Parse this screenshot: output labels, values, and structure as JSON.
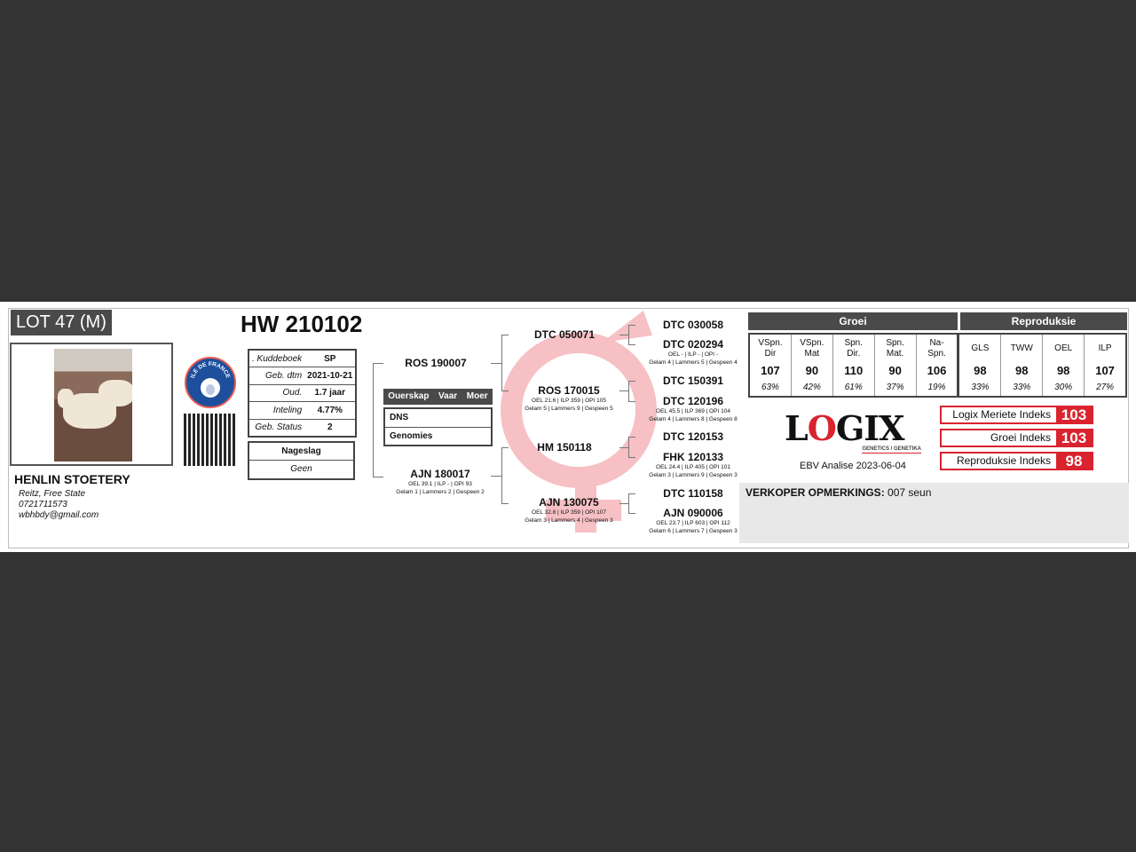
{
  "lot": "LOT 47 (M)",
  "animal_id": "HW 210102",
  "breed_logo_text": "ILE DE FRANCE",
  "breeder": {
    "name": "HENLIN STOETERY",
    "location": "Reitz, Free State",
    "phone": "0721711573",
    "email": "wbhbdy@gmail.com"
  },
  "info": [
    {
      "label": ". Kuddeboek",
      "value": "SP"
    },
    {
      "label": "Geb. dtm",
      "value": "2021-10-21"
    },
    {
      "label": "Oud.",
      "value": "1.7 jaar"
    },
    {
      "label": "Inteling",
      "value": "4.77%"
    },
    {
      "label": "Geb. Status",
      "value": "2"
    }
  ],
  "nageslag": {
    "label": "Nageslag",
    "value": "Geen"
  },
  "ouerskap": {
    "headers": [
      "Ouerskap",
      "Vaar",
      "Moer"
    ],
    "rows": [
      "DNS",
      "Genomies"
    ]
  },
  "pedigree": {
    "sire": {
      "name": "ROS 190007"
    },
    "dam": {
      "name": "AJN 180017",
      "d1": "OEL 39.1 | ILP - | OPI 93",
      "d2": "Gelam 1 | Lammers 2 | Gespeen 2"
    },
    "ss": {
      "name": "DTC 050071"
    },
    "sd": {
      "name": "ROS 170015",
      "d1": "OEL 21.6 | ILP 359 | OPI 105",
      "d2": "Gelam 5 | Lammers 9 | Gespeen 5"
    },
    "ds": {
      "name": "HM 150118"
    },
    "dd": {
      "name": "AJN 130075",
      "d1": "OEL 32.8 | ILP 359 | OPI 107",
      "d2": "Gelam 3 | Lammers 4 | Gespeen 3"
    },
    "sss": {
      "name": "DTC 030058"
    },
    "ssd": {
      "name": "DTC 020294",
      "d1": "OEL - | ILP - | OPI -",
      "d2": "Gelam 4 | Lammers 5 | Gespeen 4"
    },
    "sds": {
      "name": "DTC 150391"
    },
    "sdd": {
      "name": "DTC 120196",
      "d1": "OEL 45.5 | ILP 369 | OPI 104",
      "d2": "Gelam 4 | Lammers 8 | Gespeen 8"
    },
    "dss": {
      "name": "DTC 120153"
    },
    "dsd": {
      "name": "FHK 120133",
      "d1": "OEL 24.4 | ILP 405 | OPI 101",
      "d2": "Gelam 3 | Lammers 9 | Gespeen 3"
    },
    "dds": {
      "name": "DTC 110158"
    },
    "ddd": {
      "name": "AJN 090006",
      "d1": "OEL 23.7 | ILP 603 | OPI 112",
      "d2": "Gelam 6 | Lammers 7 | Gespeen 3"
    }
  },
  "ebv": {
    "groei": {
      "title": "Groei",
      "cols": [
        {
          "l1": "VSpn.",
          "l2": "Dir",
          "value": "107",
          "acc": "63%"
        },
        {
          "l1": "VSpn.",
          "l2": "Mat",
          "value": "90",
          "acc": "42%"
        },
        {
          "l1": "Spn.",
          "l2": "Dir.",
          "value": "110",
          "acc": "61%"
        },
        {
          "l1": "Spn.",
          "l2": "Mat.",
          "value": "90",
          "acc": "37%"
        },
        {
          "l1": "Na-",
          "l2": "Spn.",
          "value": "106",
          "acc": "19%"
        }
      ]
    },
    "repro": {
      "title": "Reproduksie",
      "cols": [
        {
          "l1": "GLS",
          "l2": "",
          "value": "98",
          "acc": "33%"
        },
        {
          "l1": "TWW",
          "l2": "",
          "value": "98",
          "acc": "33%"
        },
        {
          "l1": "OEL",
          "l2": "",
          "value": "98",
          "acc": "30%"
        },
        {
          "l1": "ILP",
          "l2": "",
          "value": "107",
          "acc": "27%"
        }
      ]
    }
  },
  "logo": {
    "text": "LOGIX",
    "sub": "GENETICS / GENETIKA",
    "color": "#d9232e"
  },
  "analysis": "EBV Analise 2023-06-04",
  "indexes": [
    {
      "label": "Logix Meriete Indeks",
      "value": "103"
    },
    {
      "label": "Groei Indeks",
      "value": "103"
    },
    {
      "label": "Reproduksie Indeks",
      "value": "98"
    }
  ],
  "remarks": {
    "label": "VERKOPER OPMERKINGS:",
    "value": "007 seun"
  }
}
